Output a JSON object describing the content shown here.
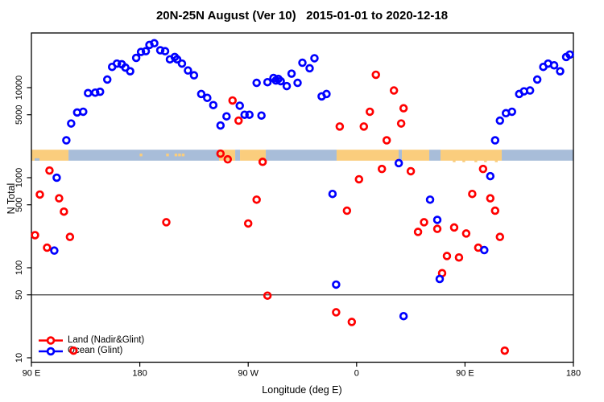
{
  "title": "20N-25N August (Ver 10)   2015-01-01 to 2020-12-18",
  "chart_data": {
    "type": "scatter",
    "title": "20N-25N August (Ver 10)   2015-01-01 to 2020-12-18",
    "xlabel": "Longitude (deg E)",
    "ylabel": "N Total",
    "x_axis": {
      "range_deg": [
        90,
        540
      ],
      "ticks": [
        {
          "lon": 90,
          "label": "90 E"
        },
        {
          "lon": 180,
          "label": "180"
        },
        {
          "lon": 270,
          "label": "90 W"
        },
        {
          "lon": 360,
          "label": "0"
        },
        {
          "lon": 450,
          "label": "90 E"
        },
        {
          "lon": 540,
          "label": "180"
        }
      ]
    },
    "y_axis": {
      "scale": "log10",
      "range": [
        8.9,
        40000
      ],
      "ticks": [
        {
          "n": 10,
          "label": "10"
        },
        {
          "n": 50,
          "label": "50"
        },
        {
          "n": 100,
          "label": "100"
        },
        {
          "n": 500,
          "label": "500"
        },
        {
          "n": 1000,
          "label": "1000"
        },
        {
          "n": 5000,
          "label": "5000"
        },
        {
          "n": 10000,
          "label": "10000"
        }
      ]
    },
    "reference_line_n": 50,
    "grid": "off",
    "legend_position": "bottom-left",
    "map_band": {
      "n_range": [
        1545,
        2045
      ],
      "land_color": "#FACD7D",
      "ocean_color": "#A8BDD9",
      "segments": [
        {
          "surface": "land",
          "from_deg": 90,
          "to_deg": 120.8
        },
        {
          "surface": "ocean",
          "from_deg": 120.8,
          "to_deg": 245.8
        },
        {
          "surface": "land",
          "from_deg": 245.8,
          "to_deg": 259.2
        },
        {
          "surface": "ocean",
          "from_deg": 259.2,
          "to_deg": 263.2
        },
        {
          "surface": "land",
          "from_deg": 263.2,
          "to_deg": 284.6
        },
        {
          "surface": "ocean",
          "from_deg": 284.6,
          "to_deg": 343.4
        },
        {
          "surface": "land",
          "from_deg": 343.4,
          "to_deg": 394.9
        },
        {
          "surface": "ocean",
          "from_deg": 394.9,
          "to_deg": 397.6
        },
        {
          "surface": "land",
          "from_deg": 397.6,
          "to_deg": 420.3
        },
        {
          "surface": "ocean",
          "from_deg": 420.3,
          "to_deg": 429.7
        },
        {
          "surface": "land",
          "from_deg": 429.7,
          "to_deg": 480.5
        },
        {
          "surface": "ocean",
          "from_deg": 480.5,
          "to_deg": 540
        }
      ],
      "island_specks_deg": [
        181,
        203,
        210,
        213,
        216
      ],
      "coastal_specks_deg": [
        441,
        449,
        459,
        467,
        476
      ],
      "ocean_specks_deg": [
        93.7,
        95.7
      ]
    },
    "series": [
      {
        "name": "Land (Nadir&Glint)",
        "color": "#FF0000",
        "marker": "open-circle",
        "points": [
          [
            105,
            1200
          ],
          [
            97,
            650
          ],
          [
            113,
            590
          ],
          [
            117,
            420
          ],
          [
            93,
            230
          ],
          [
            122,
            220
          ],
          [
            103,
            167
          ],
          [
            125,
            12
          ],
          [
            202,
            320
          ],
          [
            247,
            1850
          ],
          [
            253,
            1600
          ],
          [
            257,
            7200
          ],
          [
            262,
            4300
          ],
          [
            270,
            310
          ],
          [
            277,
            570
          ],
          [
            282,
            1500
          ],
          [
            286,
            49
          ],
          [
            343,
            32
          ],
          [
            346,
            3700
          ],
          [
            352,
            430
          ],
          [
            356,
            25
          ],
          [
            362,
            960
          ],
          [
            366,
            3700
          ],
          [
            371,
            5400
          ],
          [
            376,
            13900
          ],
          [
            381,
            1250
          ],
          [
            385,
            2600
          ],
          [
            391,
            9300
          ],
          [
            397,
            4000
          ],
          [
            399,
            5900
          ],
          [
            405,
            1180
          ],
          [
            411,
            250
          ],
          [
            416,
            320
          ],
          [
            427,
            270
          ],
          [
            431,
            87
          ],
          [
            435,
            135
          ],
          [
            441,
            280
          ],
          [
            445,
            130
          ],
          [
            451,
            240
          ],
          [
            456,
            660
          ],
          [
            461,
            167
          ],
          [
            465,
            1250
          ],
          [
            471,
            590
          ],
          [
            475,
            430
          ],
          [
            479,
            220
          ],
          [
            483,
            12
          ]
        ]
      },
      {
        "name": "Ocean (Glint)",
        "color": "#0000FF",
        "marker": "open-circle",
        "points": [
          [
            109,
            155
          ],
          [
            111,
            1000
          ],
          [
            119,
            2600
          ],
          [
            123,
            4000
          ],
          [
            128,
            5300
          ],
          [
            133,
            5400
          ],
          [
            137,
            8700
          ],
          [
            143,
            8800
          ],
          [
            147,
            9000
          ],
          [
            153,
            12300
          ],
          [
            157,
            17000
          ],
          [
            161,
            18500
          ],
          [
            165,
            18200
          ],
          [
            168,
            16700
          ],
          [
            172,
            15200
          ],
          [
            177,
            21400
          ],
          [
            181,
            24900
          ],
          [
            185,
            25400
          ],
          [
            188,
            29800
          ],
          [
            192,
            31100
          ],
          [
            197,
            26000
          ],
          [
            201,
            25400
          ],
          [
            205,
            20600
          ],
          [
            209,
            21900
          ],
          [
            211,
            20600
          ],
          [
            215,
            18500
          ],
          [
            220,
            15500
          ],
          [
            225,
            13700
          ],
          [
            231,
            8500
          ],
          [
            236,
            7700
          ],
          [
            241,
            6400
          ],
          [
            247,
            3800
          ],
          [
            252,
            4800
          ],
          [
            263,
            6300
          ],
          [
            267,
            5000
          ],
          [
            271,
            5000
          ],
          [
            277,
            11300
          ],
          [
            281,
            4900
          ],
          [
            286,
            11500
          ],
          [
            291,
            12800
          ],
          [
            293,
            12000
          ],
          [
            295,
            12500
          ],
          [
            297,
            11800
          ],
          [
            302,
            10400
          ],
          [
            306,
            14300
          ],
          [
            311,
            11300
          ],
          [
            315,
            18900
          ],
          [
            321,
            16400
          ],
          [
            325,
            21200
          ],
          [
            331,
            8000
          ],
          [
            335,
            8500
          ],
          [
            340,
            660
          ],
          [
            343,
            65
          ],
          [
            395,
            1450
          ],
          [
            399,
            29
          ],
          [
            421,
            570
          ],
          [
            427,
            340
          ],
          [
            429,
            75
          ],
          [
            466,
            157
          ],
          [
            471,
            1040
          ],
          [
            475,
            2600
          ],
          [
            479,
            4300
          ],
          [
            484,
            5200
          ],
          [
            489,
            5400
          ],
          [
            495,
            8500
          ],
          [
            499,
            9100
          ],
          [
            504,
            9300
          ],
          [
            510,
            12300
          ],
          [
            515,
            17000
          ],
          [
            519,
            18500
          ],
          [
            524,
            17700
          ],
          [
            529,
            15200
          ],
          [
            534,
            21900
          ],
          [
            537,
            23300
          ]
        ]
      }
    ]
  }
}
